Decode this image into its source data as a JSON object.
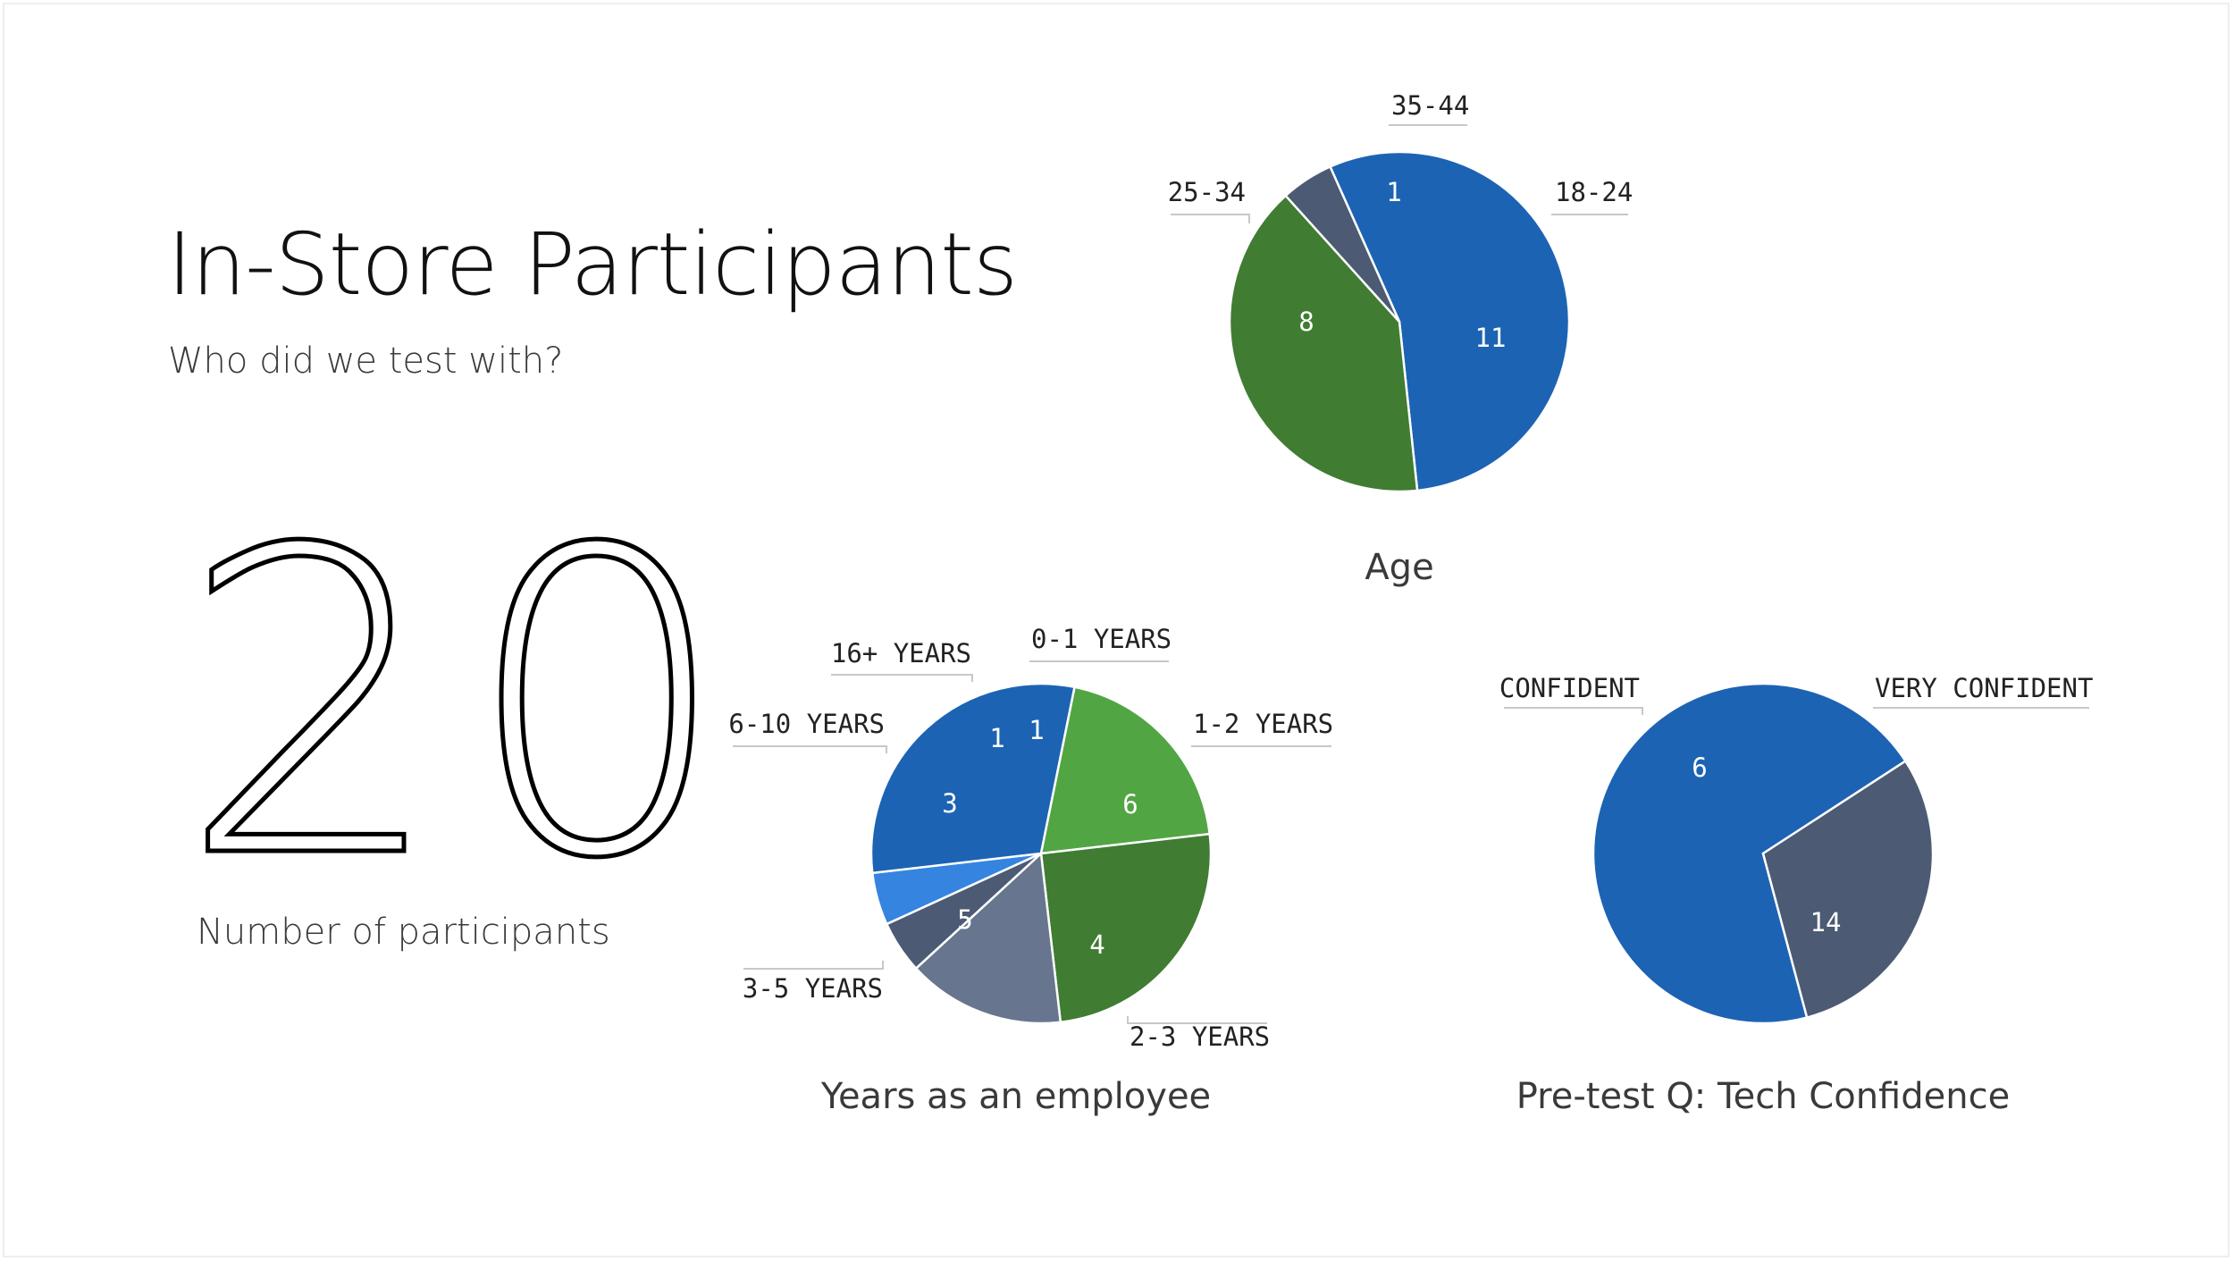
{
  "header": {
    "title": "In-Store Participants",
    "subtitle": "Who did we test with?"
  },
  "summary": {
    "value": "20",
    "label": "Number of participants"
  },
  "chart_data": [
    {
      "id": "age",
      "type": "pie",
      "title": "Age",
      "categories": [
        "18-24",
        "25-34",
        "35-44"
      ],
      "values": [
        11,
        8,
        1
      ],
      "colors": [
        "#1d63b3",
        "#407c32",
        "#4c5b73"
      ]
    },
    {
      "id": "years",
      "type": "pie",
      "title": "Years as an employee",
      "categories": [
        "0-1 YEARS",
        "1-2 YEARS",
        "2-3 YEARS",
        "3-5 YEARS",
        "6-10 YEARS",
        "16+ YEARS"
      ],
      "values": [
        1,
        6,
        4,
        5,
        3,
        1
      ],
      "colors": [
        "#3584e0",
        "#1d63b3",
        "#52a543",
        "#407c32",
        "#67768e",
        "#4c5b73"
      ]
    },
    {
      "id": "confidence",
      "type": "pie",
      "title": "Pre-test Q: Tech Confidence",
      "categories": [
        "VERY CONFIDENT",
        "CONFIDENT"
      ],
      "values": [
        14,
        6
      ],
      "colors": [
        "#1d63b3",
        "#4c5b73"
      ]
    }
  ]
}
